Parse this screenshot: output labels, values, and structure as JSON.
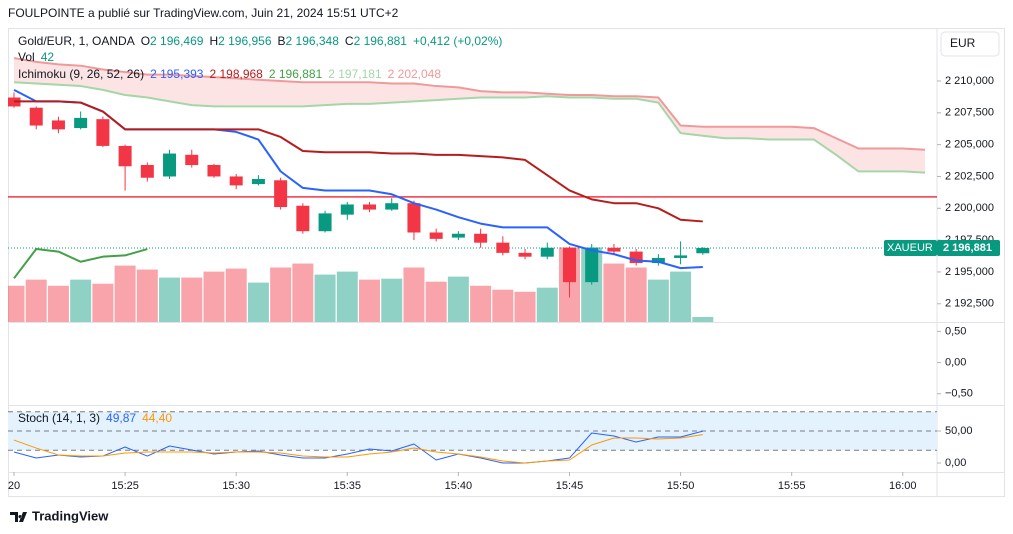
{
  "header": {
    "title": "FOULPOINTE a publié sur TradingView.com, Juin 21, 2024 15:51 UTC+2",
    "currency": "EUR",
    "brand": "TradingView"
  },
  "chart_data": [
    {
      "type": "candlestick",
      "legend": {
        "symbol": "Gold/EUR, 1, OANDA",
        "items": [
          {
            "label": "O",
            "value": "2 196,469"
          },
          {
            "label": "H",
            "value": "2 196,956"
          },
          {
            "label": "B",
            "value": "2 196,348"
          },
          {
            "label": "C",
            "value": "2 196,881"
          }
        ],
        "change": "+0,412 (+0,02%)"
      },
      "colors": {
        "up": "#089981",
        "down": "#f23645"
      },
      "x": [
        0,
        1,
        2,
        3,
        4,
        5,
        6,
        7,
        8,
        9,
        10,
        11,
        12,
        13,
        14,
        15,
        16,
        17,
        18,
        19,
        20,
        21,
        22,
        23,
        24,
        25,
        26,
        27,
        28,
        29,
        30,
        31
      ],
      "open": [
        2208.7,
        2207.9,
        2206.9,
        2206.3,
        2207.0,
        2204.9,
        2203.4,
        2202.5,
        2204.2,
        2203.4,
        2202.5,
        2201.9,
        2202.2,
        2200.2,
        2198.2,
        2199.5,
        2200.3,
        2199.9,
        2200.4,
        2198.1,
        2197.7,
        2198.0,
        2197.3,
        2196.5,
        2196.2,
        2196.9,
        2194.2,
        2196.9,
        2196.6,
        2195.7,
        2196.1,
        2196.469
      ],
      "high": [
        2209.1,
        2208.0,
        2207.2,
        2207.6,
        2207.2,
        2205.0,
        2203.6,
        2204.6,
        2204.6,
        2203.5,
        2202.7,
        2202.6,
        2202.4,
        2200.4,
        2199.8,
        2200.5,
        2200.5,
        2200.8,
        2200.6,
        2198.4,
        2198.2,
        2198.4,
        2197.8,
        2196.8,
        2197.3,
        2197.0,
        2197.2,
        2197.2,
        2196.8,
        2196.4,
        2197.4,
        2196.956
      ],
      "low": [
        2207.9,
        2206.2,
        2205.9,
        2206.2,
        2204.8,
        2201.4,
        2202.1,
        2202.3,
        2203.2,
        2202.4,
        2201.5,
        2201.8,
        2199.9,
        2198.0,
        2198.1,
        2199.1,
        2199.7,
        2199.8,
        2197.5,
        2197.4,
        2197.5,
        2196.9,
        2196.3,
        2196.0,
        2196.0,
        2193.0,
        2194.0,
        2196.4,
        2195.5,
        2195.5,
        2195.6,
        2196.348
      ],
      "close": [
        2208.0,
        2206.5,
        2206.2,
        2207.1,
        2204.9,
        2203.3,
        2202.4,
        2204.3,
        2203.4,
        2202.5,
        2201.8,
        2202.3,
        2200.1,
        2198.2,
        2199.6,
        2200.3,
        2199.9,
        2200.4,
        2198.1,
        2197.6,
        2198.0,
        2197.3,
        2196.5,
        2196.2,
        2196.9,
        2194.2,
        2196.9,
        2196.6,
        2195.7,
        2196.1,
        2196.3,
        2196.881
      ],
      "xlim": [
        -0.27,
        41.54
      ],
      "xticks": [
        {
          "value": 0,
          "label": "20"
        },
        {
          "value": 5,
          "label": "15:25"
        },
        {
          "value": 10,
          "label": "15:30"
        },
        {
          "value": 15,
          "label": "15:35"
        },
        {
          "value": 20,
          "label": "15:40"
        },
        {
          "value": 25,
          "label": "15:45"
        },
        {
          "value": 30,
          "label": "15:50"
        },
        {
          "value": 35,
          "label": "15:55"
        },
        {
          "value": 40,
          "label": "16:00"
        }
      ],
      "ylim": [
        2191.07,
        2214.16
      ],
      "yticks": [
        {
          "value": 2210,
          "label": "2 210,000"
        },
        {
          "value": 2207.5,
          "label": "2 207,500"
        },
        {
          "value": 2205,
          "label": "2 205,000"
        },
        {
          "value": 2202.5,
          "label": "2 202,500"
        },
        {
          "value": 2200,
          "label": "2 200,000"
        },
        {
          "value": 2197.5,
          "label": "2 197,500"
        },
        {
          "value": 2195,
          "label": "2 195,000"
        },
        {
          "value": 2192.5,
          "label": "2 192,500"
        }
      ],
      "hline": {
        "value": 2200.9,
        "color": "#f23645"
      },
      "last_price": {
        "name": "XAUEUR",
        "label": "2 196,881"
      },
      "volume": {
        "title": "Vol",
        "value_label": "42",
        "vlim": [
          0,
          2450
        ],
        "values": [
          302,
          353,
          302,
          353,
          319,
          470,
          437,
          370,
          370,
          420,
          445,
          328,
          454,
          487,
          395,
          420,
          353,
          361,
          454,
          336,
          378,
          302,
          269,
          252,
          286,
          622,
          622,
          487,
          454,
          353,
          420,
          42
        ]
      },
      "ichimoku": {
        "title": "Ichimoku (9, 26, 52, 26)",
        "cloud_color": "#fce4e4",
        "value_labels": [
          "2 195,393",
          "2 198,968",
          "2 196,881",
          "2 197,181",
          "2 202,048"
        ],
        "series": [
          {
            "color": "#2962ff",
            "values": [
              2209.3,
              2208.4,
              2208.4,
              2208.3,
              2207.6,
              2206.2,
              2206.2,
              2206.2,
              2206.2,
              2206.2,
              2206.0,
              2205.4,
              2202.9,
              2201.6,
              2201.4,
              2201.4,
              2201.4,
              2201.1,
              2200.4,
              2199.9,
              2199.3,
              2198.8,
              2198.5,
              2198.5,
              2198.5,
              2197.2,
              2196.7,
              2196.4,
              2195.9,
              2195.8,
              2195.3,
              2195.393
            ]
          },
          {
            "color": "#b71c1c",
            "values": [
              2208.4,
              2208.4,
              2208.4,
              2208.3,
              2207.6,
              2206.2,
              2206.2,
              2206.2,
              2206.2,
              2206.2,
              2206.2,
              2206.2,
              2205.6,
              2204.5,
              2204.4,
              2204.4,
              2204.4,
              2204.3,
              2204.3,
              2204.2,
              2204.2,
              2204.1,
              2204.0,
              2203.8,
              2202.6,
              2201.4,
              2200.7,
              2200.4,
              2200.4,
              2200.0,
              2199.1,
              2198.968
            ]
          },
          {
            "color": "#43a047",
            "x": [
              0,
              1,
              2,
              3,
              4,
              5,
              6
            ],
            "values": [
              2194.5,
              2196.8,
              2196.6,
              2195.8,
              2196.2,
              2196.3,
              2196.8
            ]
          },
          {
            "color": "#a5d6a7",
            "x": [
              0,
              1,
              2,
              3,
              4,
              5,
              6,
              7,
              8,
              9,
              10,
              11,
              12,
              13,
              14,
              15,
              16,
              17,
              18,
              19,
              20,
              21,
              22,
              23,
              24,
              25,
              26,
              27,
              28,
              29,
              30,
              31,
              32,
              33,
              34,
              35,
              36,
              37,
              38,
              39,
              40,
              41
            ],
            "values": [
              2209.9,
              2209.8,
              2209.7,
              2209.6,
              2209.3,
              2208.9,
              2208.7,
              2208.4,
              2208.1,
              2208.0,
              2208.0,
              2208.0,
              2208.0,
              2208.0,
              2208.1,
              2208.2,
              2208.2,
              2208.3,
              2208.4,
              2208.5,
              2208.6,
              2208.7,
              2208.7,
              2208.7,
              2208.8,
              2208.7,
              2208.7,
              2208.6,
              2208.6,
              2208.3,
              2205.9,
              2205.7,
              2205.5,
              2205.5,
              2205.4,
              2205.4,
              2205.4,
              2204.2,
              2202.9,
              2202.9,
              2202.9,
              2202.8
            ]
          },
          {
            "color": "#ef9a9a",
            "x": [
              0,
              1,
              2,
              3,
              4,
              5,
              6,
              7,
              8,
              9,
              10,
              11,
              12,
              13,
              14,
              15,
              16,
              17,
              18,
              19,
              20,
              21,
              22,
              23,
              24,
              25,
              26,
              27,
              28,
              29,
              30,
              31,
              32,
              33,
              34,
              35,
              36,
              37,
              38,
              39,
              40,
              41
            ],
            "values": [
              2211.8,
              2211.5,
              2211.3,
              2211.2,
              2210.9,
              2210.7,
              2210.5,
              2210.5,
              2210.4,
              2210.3,
              2210.2,
              2210.1,
              2210.0,
              2209.9,
              2209.9,
              2209.9,
              2209.9,
              2209.8,
              2209.8,
              2209.6,
              2209.5,
              2209.2,
              2209.1,
              2209.1,
              2209.0,
              2208.9,
              2208.9,
              2208.8,
              2208.8,
              2208.7,
              2206.5,
              2206.4,
              2206.4,
              2206.4,
              2206.4,
              2206.4,
              2206.3,
              2205.5,
              2204.7,
              2204.7,
              2204.7,
              2204.6
            ]
          }
        ]
      }
    },
    {
      "type": "line",
      "ylim": [
        -0.68,
        0.65
      ],
      "yticks": [
        {
          "value": 0.5,
          "label": "0,50"
        },
        {
          "value": 0,
          "label": "0,00"
        },
        {
          "value": -0.5,
          "label": "−0,50"
        }
      ],
      "series": []
    },
    {
      "type": "line",
      "title": "Stoch (14, 1, 3)",
      "value_labels": [
        "49,87",
        "44,40"
      ],
      "ylim": [
        -14,
        90.6
      ],
      "yticks": [
        {
          "value": 50,
          "label": "50,00"
        },
        {
          "value": 0,
          "label": "0,00"
        }
      ],
      "hlines": [
        80,
        50,
        20
      ],
      "band_color": "#e3f2fd",
      "series": [
        {
          "color": "#2962ff",
          "values": [
            17.2,
            7.8,
            12.5,
            9.4,
            10.9,
            25.0,
            10.9,
            26.6,
            20.3,
            14.1,
            17.2,
            18.8,
            12.5,
            7.8,
            7.8,
            14.1,
            21.9,
            18.8,
            29.7,
            4.7,
            14.1,
            7.8,
            0,
            0,
            3.1,
            7.8,
            46.9,
            42.2,
            32.8,
            40.6,
            40.6,
            49.87
          ]
        },
        {
          "color": "#ff9800",
          "values": [
            35.9,
            23.4,
            12.5,
            10.9,
            10.9,
            15.6,
            17.2,
            17.2,
            17.2,
            15.6,
            17.2,
            17.2,
            15.6,
            10.9,
            9.4,
            9.4,
            14.1,
            17.2,
            23.4,
            17.2,
            14.1,
            9.4,
            3.1,
            0,
            3.1,
            4.7,
            28.1,
            39.1,
            39.1,
            37.5,
            39.1,
            44.4
          ]
        }
      ]
    }
  ]
}
